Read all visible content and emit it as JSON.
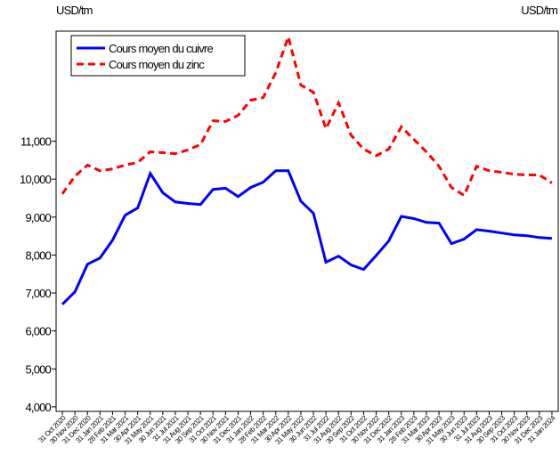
{
  "chart_data": {
    "type": "line",
    "ylabel": "USD/tm",
    "y2label": "USD/tm",
    "categories": [
      "31 Oct 2020",
      "30 Nov 2020",
      "31 Dec 2020",
      "31 Jan 2021",
      "28 Feb 2021",
      "31 Mar 2021",
      "30 Apr 2021",
      "31 May 2021",
      "30 Jun 2021",
      "31 Jul 2021",
      "31 Aug 2021",
      "30 Sep 2021",
      "31 Oct 2021",
      "30 Nov 2021",
      "31 Dec 2021",
      "31 Jan 2022",
      "28 Feb 2022",
      "31 Mar 2022",
      "30 Apr 2022",
      "31 May 2022",
      "30 Jun 2022",
      "31 Jul 2022",
      "31 Aug 2022",
      "30 Sep 2022",
      "31 Oct 2022",
      "30 Nov 2022",
      "31 Dec 2022",
      "31 Jan 2023",
      "28 Feb 2023",
      "31 Mar 2023",
      "30 Apr 2023",
      "31 May 2023",
      "30 Jun 2023",
      "31 Jul 2023",
      "31 Aug 2023",
      "30 Sep 2023",
      "31 Oct 2023",
      "30 Nov 2023",
      "31 Dec 2023",
      "31 Jan 2024"
    ],
    "series": [
      {
        "name": "Cours moyen du cuivre",
        "color": "#0000ff",
        "dash": false,
        "values": [
          6700,
          7030,
          7760,
          7920,
          8390,
          9050,
          9240,
          10150,
          9640,
          9400,
          9360,
          9330,
          9730,
          9760,
          9540,
          9780,
          9920,
          10220,
          10220,
          9420,
          9100,
          7810,
          7970,
          7740,
          7620,
          7990,
          8370,
          9020,
          8960,
          8860,
          8840,
          8300,
          8420,
          8670,
          8630,
          8580,
          8530,
          8510,
          8460,
          8440
        ]
      },
      {
        "name": "Cours moyen du zinc",
        "color": "#ff0000",
        "dash": true,
        "values": [
          9610,
          10080,
          10370,
          10220,
          10270,
          10370,
          10440,
          10720,
          10700,
          10670,
          10770,
          10910,
          11540,
          11520,
          11680,
          12080,
          12150,
          12810,
          13750,
          12480,
          12290,
          11330,
          12010,
          11160,
          10790,
          10620,
          10790,
          11380,
          11050,
          10720,
          10340,
          9780,
          9570,
          10340,
          10220,
          10180,
          10130,
          10110,
          10110,
          9900
        ]
      }
    ],
    "ylim": [
      3880,
      13900
    ],
    "yticks": [
      {
        "value": 4000,
        "label": "4,000"
      },
      {
        "value": 5000,
        "label": "5,000"
      },
      {
        "value": 6000,
        "label": "6,000"
      },
      {
        "value": 7000,
        "label": "7,000"
      },
      {
        "value": 8000,
        "label": "8,000"
      },
      {
        "value": 9000,
        "label": "9,000"
      },
      {
        "value": 10000,
        "label": "10,000"
      },
      {
        "value": 11000,
        "label": "11,000"
      }
    ],
    "legend": "upper left",
    "grid": false
  }
}
